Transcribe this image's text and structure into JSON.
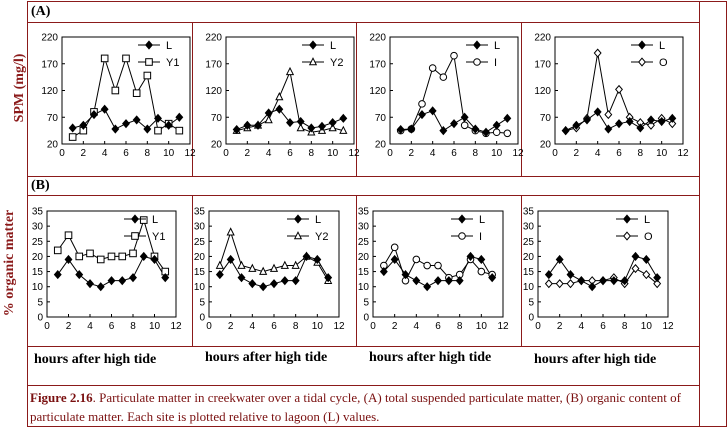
{
  "row_labels": {
    "a": "(A)",
    "b": "(B)"
  },
  "ylabel_a": "SPM (mg/l)",
  "ylabel_b": "% organic matter",
  "xlabel": "hours after high tide",
  "caption": {
    "fig": "Figure 2.16",
    "text": ".  Particulate matter in creekwater over a tidal cycle, (A) total suspended particulate matter, (B) organic content of particulate matter.  Each site is plotted relative to lagoon (L) values."
  },
  "colors": {
    "border": "#8b1a1a",
    "caption": "#7a1010",
    "series": "#000000"
  },
  "chart_data": [
    {
      "panel": "A1",
      "type": "line",
      "ylim": [
        20,
        220
      ],
      "yticks": [
        20,
        70,
        120,
        170,
        220
      ],
      "xlim": [
        0,
        12
      ],
      "xticks": [
        0,
        2,
        4,
        6,
        8,
        10,
        12
      ],
      "legend": "top-right",
      "x": [
        1,
        2,
        3,
        4,
        5,
        6,
        7,
        8,
        9,
        10,
        11
      ],
      "series": [
        {
          "name": "L",
          "marker": "diamond-filled",
          "values": [
            50,
            55,
            75,
            85,
            48,
            58,
            65,
            48,
            68,
            55,
            70
          ]
        },
        {
          "name": "Y1",
          "marker": "square-open",
          "values": [
            33,
            45,
            80,
            180,
            120,
            180,
            115,
            148,
            45,
            58,
            45
          ]
        }
      ]
    },
    {
      "panel": "A2",
      "type": "line",
      "ylim": [
        20,
        220
      ],
      "yticks": [
        20,
        70,
        120,
        170,
        220
      ],
      "xlim": [
        0,
        12
      ],
      "xticks": [
        0,
        2,
        4,
        6,
        8,
        10,
        12
      ],
      "legend": "top-right",
      "x": [
        1,
        2,
        3,
        4,
        5,
        6,
        7,
        8,
        9,
        10,
        11
      ],
      "series": [
        {
          "name": "L",
          "marker": "diamond-filled",
          "values": [
            47,
            55,
            55,
            78,
            85,
            60,
            62,
            50,
            53,
            60,
            68
          ]
        },
        {
          "name": "Y2",
          "marker": "triangle-open",
          "values": [
            45,
            50,
            55,
            65,
            108,
            155,
            50,
            42,
            45,
            50,
            45
          ]
        }
      ]
    },
    {
      "panel": "A3",
      "type": "line",
      "ylim": [
        20,
        220
      ],
      "yticks": [
        20,
        70,
        120,
        170,
        220
      ],
      "xlim": [
        0,
        12
      ],
      "xticks": [
        0,
        2,
        4,
        6,
        8,
        10,
        12
      ],
      "legend": "top-right",
      "x": [
        1,
        2,
        3,
        4,
        5,
        6,
        7,
        8,
        9,
        10,
        11
      ],
      "series": [
        {
          "name": "L",
          "marker": "diamond-filled",
          "values": [
            47,
            48,
            75,
            82,
            45,
            58,
            70,
            48,
            42,
            55,
            68
          ]
        },
        {
          "name": "I",
          "marker": "circle-open",
          "values": [
            45,
            48,
            95,
            162,
            145,
            185,
            55,
            45,
            40,
            42,
            40
          ]
        }
      ]
    },
    {
      "panel": "A4",
      "type": "line",
      "ylim": [
        20,
        220
      ],
      "yticks": [
        20,
        70,
        120,
        170,
        220
      ],
      "xlim": [
        0,
        12
      ],
      "xticks": [
        0,
        2,
        4,
        6,
        8,
        10,
        12
      ],
      "legend": "top-right",
      "x": [
        1,
        2,
        3,
        4,
        5,
        6,
        7,
        8,
        9,
        10,
        11
      ],
      "series": [
        {
          "name": "L",
          "marker": "diamond-filled",
          "values": [
            45,
            55,
            65,
            80,
            48,
            58,
            62,
            50,
            65,
            62,
            68
          ]
        },
        {
          "name": "O",
          "marker": "diamond-open",
          "values": [
            45,
            50,
            68,
            190,
            75,
            122,
            70,
            60,
            55,
            68,
            58
          ]
        }
      ]
    },
    {
      "panel": "B1",
      "type": "line",
      "ylim": [
        0,
        35
      ],
      "yticks": [
        0,
        5,
        10,
        15,
        20,
        25,
        30,
        35
      ],
      "xlim": [
        0,
        12
      ],
      "xticks": [
        0,
        2,
        4,
        6,
        8,
        10,
        12
      ],
      "legend": "top-right",
      "x": [
        1,
        2,
        3,
        4,
        5,
        6,
        7,
        8,
        9,
        10,
        11
      ],
      "series": [
        {
          "name": "L",
          "marker": "diamond-filled",
          "values": [
            14,
            19,
            14,
            11,
            10,
            12,
            12,
            13,
            20,
            19,
            13
          ]
        },
        {
          "name": "Y1",
          "marker": "square-open",
          "values": [
            22,
            27,
            20,
            21,
            19,
            20,
            20,
            21,
            32,
            20,
            15
          ]
        }
      ]
    },
    {
      "panel": "B2",
      "type": "line",
      "ylim": [
        0,
        35
      ],
      "yticks": [
        0,
        5,
        10,
        15,
        20,
        25,
        30,
        35
      ],
      "xlim": [
        0,
        12
      ],
      "xticks": [
        0,
        2,
        4,
        6,
        8,
        10,
        12
      ],
      "legend": "top-right",
      "x": [
        1,
        2,
        3,
        4,
        5,
        6,
        7,
        8,
        9,
        10,
        11
      ],
      "series": [
        {
          "name": "L",
          "marker": "diamond-filled",
          "values": [
            14,
            19,
            13,
            11,
            10,
            11,
            12,
            12,
            20,
            19,
            13
          ]
        },
        {
          "name": "Y2",
          "marker": "triangle-open",
          "values": [
            17,
            28,
            17,
            16,
            15,
            16,
            17,
            17,
            20,
            18,
            12
          ]
        }
      ]
    },
    {
      "panel": "B3",
      "type": "line",
      "ylim": [
        0,
        35
      ],
      "yticks": [
        0,
        5,
        10,
        15,
        20,
        25,
        30,
        35
      ],
      "xlim": [
        0,
        12
      ],
      "xticks": [
        0,
        2,
        4,
        6,
        8,
        10,
        12
      ],
      "legend": "top-right",
      "x": [
        1,
        2,
        3,
        4,
        5,
        6,
        7,
        8,
        9,
        10,
        11
      ],
      "series": [
        {
          "name": "L",
          "marker": "diamond-filled",
          "values": [
            15,
            19,
            14,
            12,
            10,
            12,
            12,
            12,
            20,
            19,
            13
          ]
        },
        {
          "name": "I",
          "marker": "circle-open",
          "values": [
            17,
            23,
            12,
            19,
            17,
            17,
            13,
            14,
            19,
            15,
            14
          ]
        }
      ]
    },
    {
      "panel": "B4",
      "type": "line",
      "ylim": [
        0,
        35
      ],
      "yticks": [
        0,
        5,
        10,
        15,
        20,
        25,
        30,
        35
      ],
      "xlim": [
        0,
        12
      ],
      "xticks": [
        0,
        2,
        4,
        6,
        8,
        10,
        12
      ],
      "legend": "top-right",
      "x": [
        1,
        2,
        3,
        4,
        5,
        6,
        7,
        8,
        9,
        10,
        11
      ],
      "series": [
        {
          "name": "L",
          "marker": "diamond-filled",
          "values": [
            14,
            19,
            14,
            12,
            10,
            12,
            12,
            12,
            20,
            19,
            13
          ]
        },
        {
          "name": "O",
          "marker": "diamond-open",
          "values": [
            11,
            11,
            11,
            12,
            12,
            12,
            13,
            11,
            16,
            14,
            11
          ]
        }
      ]
    }
  ]
}
